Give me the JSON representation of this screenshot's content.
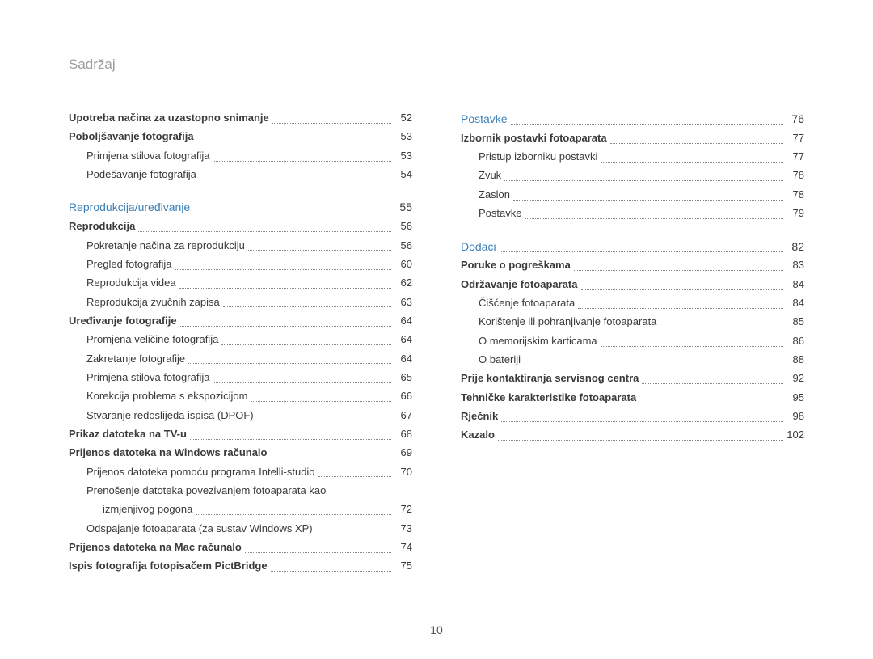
{
  "header": "Sadržaj",
  "page_number": "10",
  "left": [
    {
      "type": "entry",
      "level": 1,
      "bold": true,
      "label": "Upotreba načina za uzastopno snimanje",
      "page": "52"
    },
    {
      "type": "entry",
      "level": 1,
      "bold": true,
      "label": "Poboljšavanje fotografija",
      "page": "53"
    },
    {
      "type": "entry",
      "level": 2,
      "bold": false,
      "label": "Primjena stilova fotografija",
      "page": "53"
    },
    {
      "type": "entry",
      "level": 2,
      "bold": false,
      "label": "Podešavanje fotografija",
      "page": "54"
    },
    {
      "type": "spacer"
    },
    {
      "type": "entry",
      "level": 1,
      "section": true,
      "label": "Reprodukcija/uređivanje",
      "page": "55"
    },
    {
      "type": "entry",
      "level": 1,
      "bold": true,
      "label": "Reprodukcija",
      "page": "56"
    },
    {
      "type": "entry",
      "level": 2,
      "bold": false,
      "label": "Pokretanje načina za reprodukciju",
      "page": "56"
    },
    {
      "type": "entry",
      "level": 2,
      "bold": false,
      "label": "Pregled fotografija",
      "page": "60"
    },
    {
      "type": "entry",
      "level": 2,
      "bold": false,
      "label": "Reprodukcija videa",
      "page": "62"
    },
    {
      "type": "entry",
      "level": 2,
      "bold": false,
      "label": "Reprodukcija zvučnih zapisa",
      "page": "63"
    },
    {
      "type": "entry",
      "level": 1,
      "bold": true,
      "label": "Uređivanje fotografije",
      "page": "64"
    },
    {
      "type": "entry",
      "level": 2,
      "bold": false,
      "label": "Promjena veličine fotografija",
      "page": "64"
    },
    {
      "type": "entry",
      "level": 2,
      "bold": false,
      "label": "Zakretanje fotografije",
      "page": "64"
    },
    {
      "type": "entry",
      "level": 2,
      "bold": false,
      "label": "Primjena stilova fotografija",
      "page": "65"
    },
    {
      "type": "entry",
      "level": 2,
      "bold": false,
      "label": "Korekcija problema s ekspozicijom",
      "page": "66"
    },
    {
      "type": "entry",
      "level": 2,
      "bold": false,
      "label": "Stvaranje redoslijeda ispisa (DPOF)",
      "page": "67"
    },
    {
      "type": "entry",
      "level": 1,
      "bold": true,
      "label": "Prikaz datoteka na TV-u",
      "page": "68"
    },
    {
      "type": "entry",
      "level": 1,
      "bold": true,
      "label": "Prijenos datoteka na Windows računalo",
      "page": "69"
    },
    {
      "type": "entry",
      "level": 2,
      "bold": false,
      "label": "Prijenos datoteka pomoću programa Intelli-studio",
      "page": "70"
    },
    {
      "type": "wrap",
      "line1": "Prenošenje datoteka povezivanjem fotoaparata kao",
      "line2": "izmjenjivog pogona",
      "page": "72"
    },
    {
      "type": "entry",
      "level": 2,
      "bold": false,
      "label": "Odspajanje fotoaparata (za sustav Windows XP)",
      "page": "73"
    },
    {
      "type": "entry",
      "level": 1,
      "bold": true,
      "label": "Prijenos datoteka na Mac računalo",
      "page": "74"
    },
    {
      "type": "entry",
      "level": 1,
      "bold": true,
      "label": "Ispis fotografija fotopisačem PictBridge",
      "page": "75"
    }
  ],
  "right": [
    {
      "type": "entry",
      "level": 1,
      "section": true,
      "label": "Postavke",
      "page": "76"
    },
    {
      "type": "entry",
      "level": 1,
      "bold": true,
      "label": "Izbornik postavki fotoaparata",
      "page": "77"
    },
    {
      "type": "entry",
      "level": 2,
      "bold": false,
      "label": "Pristup izborniku postavki",
      "page": "77"
    },
    {
      "type": "entry",
      "level": 2,
      "bold": false,
      "label": "Zvuk",
      "page": "78"
    },
    {
      "type": "entry",
      "level": 2,
      "bold": false,
      "label": "Zaslon",
      "page": "78"
    },
    {
      "type": "entry",
      "level": 2,
      "bold": false,
      "label": "Postavke",
      "page": "79"
    },
    {
      "type": "spacer"
    },
    {
      "type": "entry",
      "level": 1,
      "section": true,
      "label": "Dodaci",
      "page": "82"
    },
    {
      "type": "entry",
      "level": 1,
      "bold": true,
      "label": "Poruke o pogreškama",
      "page": "83"
    },
    {
      "type": "entry",
      "level": 1,
      "bold": true,
      "label": "Održavanje fotoaparata",
      "page": "84"
    },
    {
      "type": "entry",
      "level": 2,
      "bold": false,
      "label": "Čišćenje fotoaparata",
      "page": "84"
    },
    {
      "type": "entry",
      "level": 2,
      "bold": false,
      "label": "Korištenje ili pohranjivanje fotoaparata",
      "page": "85"
    },
    {
      "type": "entry",
      "level": 2,
      "bold": false,
      "label": "O memorijskim karticama",
      "page": "86"
    },
    {
      "type": "entry",
      "level": 2,
      "bold": false,
      "label": "O bateriji",
      "page": "88"
    },
    {
      "type": "entry",
      "level": 1,
      "bold": true,
      "label": "Prije kontaktiranja servisnog centra",
      "page": "92"
    },
    {
      "type": "entry",
      "level": 1,
      "bold": true,
      "label": "Tehničke karakteristike fotoaparata",
      "page": "95"
    },
    {
      "type": "entry",
      "level": 1,
      "bold": true,
      "label": "Rječnik",
      "page": "98"
    },
    {
      "type": "entry",
      "level": 1,
      "bold": true,
      "label": "Kazalo",
      "page": "102"
    }
  ]
}
